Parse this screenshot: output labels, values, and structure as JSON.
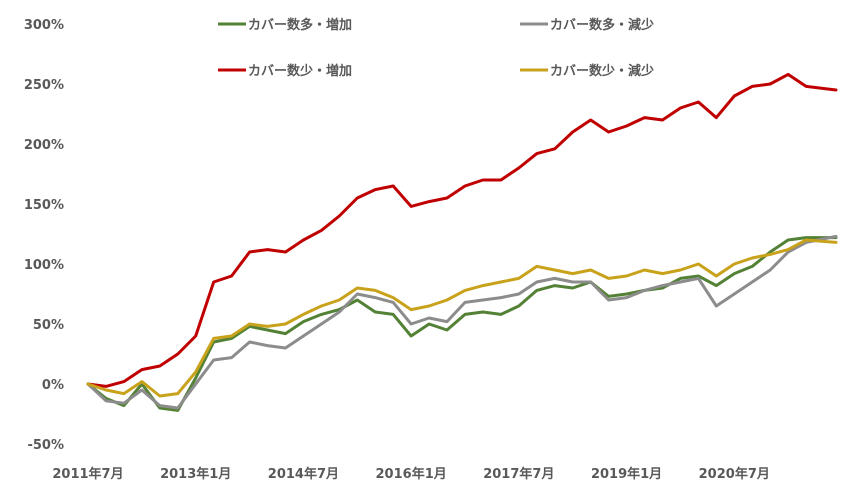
{
  "chart_data": {
    "type": "line",
    "title": "",
    "xlabel": "",
    "ylabel": "",
    "ylim": [
      -50,
      300
    ],
    "y_ticks": [
      -50,
      0,
      50,
      100,
      150,
      200,
      250,
      300
    ],
    "y_tick_labels": [
      "-50%",
      "0%",
      "50%",
      "100%",
      "150%",
      "200%",
      "250%",
      "300%"
    ],
    "x_start": "2011-07",
    "x_end": "2021-12",
    "x_tick_dates": [
      "2011-07",
      "2013-01",
      "2014-07",
      "2016-01",
      "2017-07",
      "2019-01",
      "2020-07"
    ],
    "x_tick_labels": [
      "2011年7月",
      "2013年1月",
      "2014年7月",
      "2016年1月",
      "2017年7月",
      "2019年1月",
      "2020年7月"
    ],
    "grid": false,
    "legend_position": "top",
    "series": [
      {
        "name": "カバー数多・増加",
        "color": "#538135",
        "points": [
          [
            "2011-07",
            0
          ],
          [
            "2011-10",
            -12
          ],
          [
            "2012-01",
            -18
          ],
          [
            "2012-04",
            0
          ],
          [
            "2012-07",
            -20
          ],
          [
            "2012-10",
            -22
          ],
          [
            "2013-01",
            5
          ],
          [
            "2013-04",
            35
          ],
          [
            "2013-07",
            38
          ],
          [
            "2013-10",
            48
          ],
          [
            "2014-01",
            45
          ],
          [
            "2014-04",
            42
          ],
          [
            "2014-07",
            52
          ],
          [
            "2014-10",
            58
          ],
          [
            "2015-01",
            62
          ],
          [
            "2015-04",
            70
          ],
          [
            "2015-07",
            60
          ],
          [
            "2015-10",
            58
          ],
          [
            "2016-01",
            40
          ],
          [
            "2016-04",
            50
          ],
          [
            "2016-07",
            45
          ],
          [
            "2016-10",
            58
          ],
          [
            "2017-01",
            60
          ],
          [
            "2017-04",
            58
          ],
          [
            "2017-07",
            65
          ],
          [
            "2017-10",
            78
          ],
          [
            "2018-01",
            82
          ],
          [
            "2018-04",
            80
          ],
          [
            "2018-07",
            85
          ],
          [
            "2018-10",
            73
          ],
          [
            "2019-01",
            75
          ],
          [
            "2019-04",
            78
          ],
          [
            "2019-07",
            80
          ],
          [
            "2019-10",
            88
          ],
          [
            "2020-01",
            90
          ],
          [
            "2020-04",
            82
          ],
          [
            "2020-07",
            92
          ],
          [
            "2020-10",
            98
          ],
          [
            "2021-01",
            110
          ],
          [
            "2021-04",
            120
          ],
          [
            "2021-07",
            122
          ],
          [
            "2021-12",
            122
          ]
        ]
      },
      {
        "name": "カバー数多・減少",
        "color": "#8c8c8c",
        "points": [
          [
            "2011-07",
            0
          ],
          [
            "2011-10",
            -14
          ],
          [
            "2012-01",
            -16
          ],
          [
            "2012-04",
            -5
          ],
          [
            "2012-07",
            -18
          ],
          [
            "2012-10",
            -20
          ],
          [
            "2013-01",
            0
          ],
          [
            "2013-04",
            20
          ],
          [
            "2013-07",
            22
          ],
          [
            "2013-10",
            35
          ],
          [
            "2014-01",
            32
          ],
          [
            "2014-04",
            30
          ],
          [
            "2014-07",
            40
          ],
          [
            "2014-10",
            50
          ],
          [
            "2015-01",
            60
          ],
          [
            "2015-04",
            75
          ],
          [
            "2015-07",
            72
          ],
          [
            "2015-10",
            68
          ],
          [
            "2016-01",
            50
          ],
          [
            "2016-04",
            55
          ],
          [
            "2016-07",
            52
          ],
          [
            "2016-10",
            68
          ],
          [
            "2017-01",
            70
          ],
          [
            "2017-04",
            72
          ],
          [
            "2017-07",
            75
          ],
          [
            "2017-10",
            85
          ],
          [
            "2018-01",
            88
          ],
          [
            "2018-04",
            85
          ],
          [
            "2018-07",
            85
          ],
          [
            "2018-10",
            70
          ],
          [
            "2019-01",
            72
          ],
          [
            "2019-04",
            78
          ],
          [
            "2019-07",
            82
          ],
          [
            "2019-10",
            85
          ],
          [
            "2020-01",
            88
          ],
          [
            "2020-04",
            65
          ],
          [
            "2020-07",
            75
          ],
          [
            "2020-10",
            85
          ],
          [
            "2021-01",
            95
          ],
          [
            "2021-04",
            110
          ],
          [
            "2021-07",
            118
          ],
          [
            "2021-12",
            123
          ]
        ]
      },
      {
        "name": "カバー数少・増加",
        "color": "#c00000",
        "points": [
          [
            "2011-07",
            0
          ],
          [
            "2011-10",
            -2
          ],
          [
            "2012-01",
            2
          ],
          [
            "2012-04",
            12
          ],
          [
            "2012-07",
            15
          ],
          [
            "2012-10",
            25
          ],
          [
            "2013-01",
            40
          ],
          [
            "2013-04",
            85
          ],
          [
            "2013-07",
            90
          ],
          [
            "2013-10",
            110
          ],
          [
            "2014-01",
            112
          ],
          [
            "2014-04",
            110
          ],
          [
            "2014-07",
            120
          ],
          [
            "2014-10",
            128
          ],
          [
            "2015-01",
            140
          ],
          [
            "2015-04",
            155
          ],
          [
            "2015-07",
            162
          ],
          [
            "2015-10",
            165
          ],
          [
            "2016-01",
            148
          ],
          [
            "2016-04",
            152
          ],
          [
            "2016-07",
            155
          ],
          [
            "2016-10",
            165
          ],
          [
            "2017-01",
            170
          ],
          [
            "2017-04",
            170
          ],
          [
            "2017-07",
            180
          ],
          [
            "2017-10",
            192
          ],
          [
            "2018-01",
            196
          ],
          [
            "2018-04",
            210
          ],
          [
            "2018-07",
            220
          ],
          [
            "2018-10",
            210
          ],
          [
            "2019-01",
            215
          ],
          [
            "2019-04",
            222
          ],
          [
            "2019-07",
            220
          ],
          [
            "2019-10",
            230
          ],
          [
            "2020-01",
            235
          ],
          [
            "2020-04",
            222
          ],
          [
            "2020-07",
            240
          ],
          [
            "2020-10",
            248
          ],
          [
            "2021-01",
            250
          ],
          [
            "2021-04",
            258
          ],
          [
            "2021-07",
            248
          ],
          [
            "2021-12",
            245
          ]
        ]
      },
      {
        "name": "カバー数少・減少",
        "color": "#c9a21c",
        "points": [
          [
            "2011-07",
            0
          ],
          [
            "2011-10",
            -5
          ],
          [
            "2012-01",
            -8
          ],
          [
            "2012-04",
            2
          ],
          [
            "2012-07",
            -10
          ],
          [
            "2012-10",
            -8
          ],
          [
            "2013-01",
            10
          ],
          [
            "2013-04",
            38
          ],
          [
            "2013-07",
            40
          ],
          [
            "2013-10",
            50
          ],
          [
            "2014-01",
            48
          ],
          [
            "2014-04",
            50
          ],
          [
            "2014-07",
            58
          ],
          [
            "2014-10",
            65
          ],
          [
            "2015-01",
            70
          ],
          [
            "2015-04",
            80
          ],
          [
            "2015-07",
            78
          ],
          [
            "2015-10",
            72
          ],
          [
            "2016-01",
            62
          ],
          [
            "2016-04",
            65
          ],
          [
            "2016-07",
            70
          ],
          [
            "2016-10",
            78
          ],
          [
            "2017-01",
            82
          ],
          [
            "2017-04",
            85
          ],
          [
            "2017-07",
            88
          ],
          [
            "2017-10",
            98
          ],
          [
            "2018-01",
            95
          ],
          [
            "2018-04",
            92
          ],
          [
            "2018-07",
            95
          ],
          [
            "2018-10",
            88
          ],
          [
            "2019-01",
            90
          ],
          [
            "2019-04",
            95
          ],
          [
            "2019-07",
            92
          ],
          [
            "2019-10",
            95
          ],
          [
            "2020-01",
            100
          ],
          [
            "2020-04",
            90
          ],
          [
            "2020-07",
            100
          ],
          [
            "2020-10",
            105
          ],
          [
            "2021-01",
            108
          ],
          [
            "2021-04",
            112
          ],
          [
            "2021-07",
            120
          ],
          [
            "2021-12",
            118
          ]
        ]
      }
    ]
  }
}
